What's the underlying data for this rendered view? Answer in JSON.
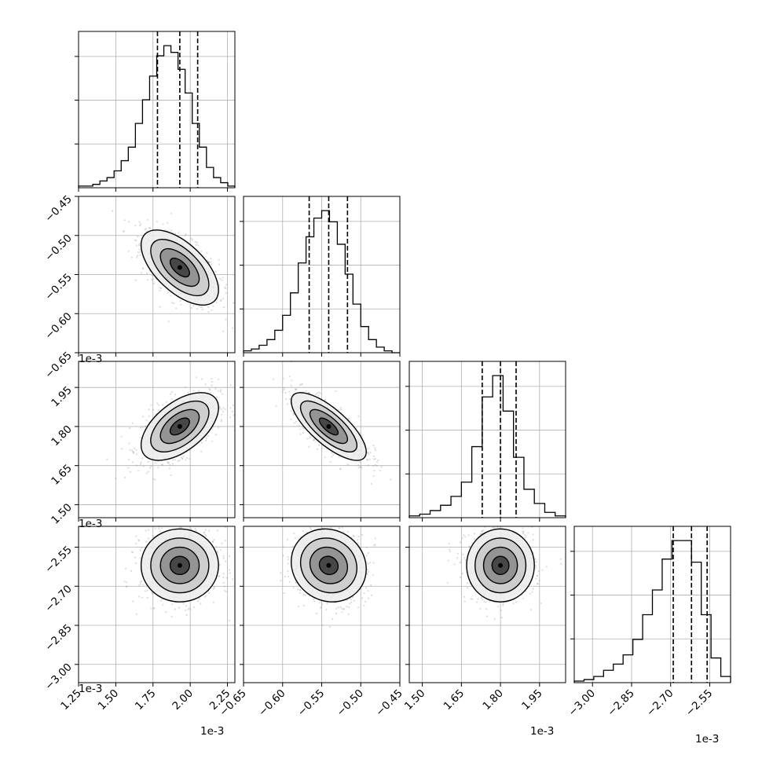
{
  "chart_data": {
    "type": "corner",
    "multiplier_label": "1e-3",
    "quantiles": [
      0.16,
      0.5,
      0.84
    ],
    "parameters": [
      {
        "index": 0,
        "median": 1.93,
        "q16": 1.78,
        "q84": 2.05,
        "sigma": 0.13,
        "range": [
          1.25,
          2.3
        ],
        "ticks": [
          "1.25",
          "1.50",
          "1.75",
          "2.00",
          "2.25"
        ]
      },
      {
        "index": 1,
        "median": -0.541,
        "q16": -0.566,
        "q84": -0.517,
        "sigma": 0.024,
        "range": [
          -0.65,
          -0.45
        ],
        "ticks": [
          "−0.65",
          "−0.60",
          "−0.55",
          "−0.50",
          "−0.45"
        ]
      },
      {
        "index": 2,
        "median": 1.8,
        "q16": 1.73,
        "q84": 1.86,
        "sigma": 0.065,
        "range": [
          1.45,
          2.05
        ],
        "ticks": [
          "1.50",
          "1.65",
          "1.80",
          "1.95"
        ]
      },
      {
        "index": 3,
        "median": -2.62,
        "q16": -2.69,
        "q84": -2.56,
        "sigma": 0.07,
        "range": [
          -3.07,
          -2.47
        ],
        "ticks": [
          "−3.00",
          "−2.85",
          "−2.70",
          "−2.55"
        ]
      }
    ],
    "correlations": {
      "0-1": -0.6,
      "0-2": 0.55,
      "1-2": -0.75,
      "0-3": 0.0,
      "1-3": -0.1,
      "2-3": 0.0
    },
    "histograms": {
      "0": {
        "bins": [
          1.25,
          2.3
        ],
        "counts": [
          1,
          1,
          2,
          4,
          6,
          10,
          16,
          24,
          38,
          52,
          66,
          78,
          84,
          80,
          70,
          56,
          38,
          24,
          12,
          6,
          3,
          1
        ]
      },
      "1": {
        "bins": [
          -0.65,
          -0.45
        ],
        "counts": [
          1,
          2,
          4,
          7,
          12,
          20,
          32,
          48,
          62,
          72,
          76,
          70,
          58,
          42,
          26,
          14,
          7,
          3,
          1,
          0
        ]
      },
      "2": {
        "bins": [
          1.45,
          2.05
        ],
        "counts": [
          1,
          2,
          4,
          7,
          12,
          20,
          40,
          68,
          80,
          60,
          34,
          16,
          8,
          3,
          1
        ]
      },
      "3": {
        "bins": [
          -3.07,
          -2.47
        ],
        "counts": [
          1,
          2,
          4,
          8,
          12,
          18,
          28,
          44,
          60,
          80,
          92,
          92,
          78,
          44,
          16,
          4
        ]
      }
    }
  }
}
